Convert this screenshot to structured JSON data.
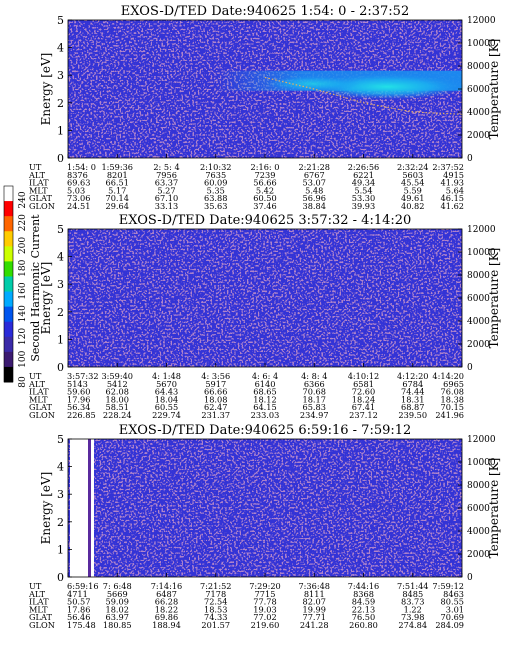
{
  "figure": {
    "colorbar": {
      "label": "Second Harmonic Current",
      "ticks": [
        "240",
        "220",
        "200",
        "180",
        "160",
        "140",
        "120",
        "100",
        "80"
      ],
      "colors": [
        "#ffffff",
        "#ff0000",
        "#ff6600",
        "#ffcc00",
        "#ccff00",
        "#33dd00",
        "#00ccaa",
        "#00aaff",
        "#0055ee",
        "#2a2ad8",
        "#3a2aa8",
        "#3b1a70",
        "#000000"
      ]
    },
    "background_color": "#3333d6",
    "texture_color": "#6e3a96"
  },
  "chart_data": [
    {
      "type": "heatmap",
      "title": "EXOS-D/TED   Date:940625   1:54: 0 - 2:37:52",
      "ylabel": "Energy [eV]",
      "y2label": "Temperature [K]",
      "ylim": [
        0,
        5
      ],
      "y2lim": [
        0,
        12000
      ],
      "yticks": [
        "0",
        "1",
        "2",
        "3",
        "4",
        "5"
      ],
      "y2ticks": [
        "0",
        "2000",
        "4000",
        "6000",
        "8000",
        "10000",
        "12000"
      ],
      "row_labels": [
        "UT",
        "ALT",
        "ILAT",
        "MLT",
        "GLAT",
        "GLON"
      ],
      "columns": [
        [
          "1:54: 0",
          "8376",
          "69.63",
          "5.03",
          "73.06",
          "24.51"
        ],
        [
          "1:59:36",
          "8201",
          "66.51",
          "5.17",
          "70.14",
          "29.64"
        ],
        [
          "2: 5: 4",
          "7956",
          "63.37",
          "5.27",
          "67.10",
          "33.13"
        ],
        [
          "2:10:32",
          "7635",
          "60.09",
          "5.35",
          "63.88",
          "35.63"
        ],
        [
          "2:16: 0",
          "7239",
          "56.66",
          "5.42",
          "60.50",
          "37.46"
        ],
        [
          "2:21:28",
          "6767",
          "53.07",
          "5.48",
          "56.96",
          "38.84"
        ],
        [
          "2:26:56",
          "6221",
          "49.34",
          "5.54",
          "53.30",
          "39.93"
        ],
        [
          "2:32:24",
          "5603",
          "45.54",
          "5.59",
          "49.61",
          "40.82"
        ],
        [
          "2:37:52",
          "4915",
          "41.93",
          "5.64",
          "46.15",
          "41.62"
        ]
      ],
      "features": {
        "band_energy_ev": 2.8,
        "band_starts_at_ut": "2:10:32",
        "band_peak_energy_ev": 2.5,
        "temperature_trace": {
          "x_ut": [
            "2:16: 0",
            "2:21:28",
            "2:26:56",
            "2:32:24",
            "2:37:52"
          ],
          "y_k": [
            7000,
            6000,
            4800,
            4000,
            3800
          ]
        }
      }
    },
    {
      "type": "heatmap",
      "title": "EXOS-D/TED   Date:940625   3:57:32 - 4:14:20",
      "ylabel": "Energy [eV]",
      "y2label": "Temperature [K]",
      "ylim": [
        0,
        5
      ],
      "y2lim": [
        0,
        12000
      ],
      "yticks": [
        "0",
        "1",
        "2",
        "3",
        "4",
        "5"
      ],
      "y2ticks": [
        "0",
        "2000",
        "4000",
        "6000",
        "8000",
        "10000",
        "12000"
      ],
      "row_labels": [
        "UT",
        "ALT",
        "ILAT",
        "MLT",
        "GLAT",
        "GLON"
      ],
      "columns": [
        [
          "3:57:32",
          "5143",
          "59.60",
          "17.96",
          "56.34",
          "226.85"
        ],
        [
          "3:59:40",
          "5412",
          "62.08",
          "18.00",
          "58.51",
          "228.24"
        ],
        [
          "4: 1:48",
          "5670",
          "64.43",
          "18.04",
          "60.55",
          "229.74"
        ],
        [
          "4: 3:56",
          "5917",
          "66.66",
          "18.08",
          "62.47",
          "231.37"
        ],
        [
          "4: 6: 4",
          "6140",
          "68.65",
          "18.12",
          "64.15",
          "233.03"
        ],
        [
          "4: 8: 4",
          "6366",
          "70.68",
          "18.17",
          "65.83",
          "234.97"
        ],
        [
          "4:10:12",
          "6581",
          "72.60",
          "18.24",
          "67.41",
          "237.12"
        ],
        [
          "4:12:20",
          "6784",
          "74.44",
          "18.31",
          "68.87",
          "239.50"
        ],
        [
          "4:14:20",
          "6965",
          "76.08",
          "18.38",
          "70.15",
          "241.96"
        ]
      ]
    },
    {
      "type": "heatmap",
      "title": "EXOS-D/TED   Date:940625   6:59:16 - 7:59:12",
      "ylabel": "Energy [eV]",
      "y2label": "Temperature [K]",
      "ylim": [
        0,
        5
      ],
      "y2lim": [
        0,
        12000
      ],
      "yticks": [
        "0",
        "1",
        "2",
        "3",
        "4",
        "5"
      ],
      "y2ticks": [
        "0",
        "2000",
        "4000",
        "6000",
        "8000",
        "10000",
        "12000"
      ],
      "row_labels": [
        "UT",
        "ALT",
        "ILAT",
        "MLT",
        "GLAT",
        "GLON"
      ],
      "columns": [
        [
          "6:59:16",
          "4711",
          "50.57",
          "17.86",
          "56.46",
          "175.48"
        ],
        [
          "7: 6:48",
          "5669",
          "59.09",
          "18.02",
          "63.97",
          "180.85"
        ],
        [
          "7:14:16",
          "6487",
          "66.28",
          "18.22",
          "69.86",
          "188.94"
        ],
        [
          "7:21:52",
          "7178",
          "72.54",
          "18.53",
          "74.33",
          "201.57"
        ],
        [
          "7:29:20",
          "7715",
          "77.78",
          "19.03",
          "77.02",
          "219.60"
        ],
        [
          "7:36:48",
          "8111",
          "82.07",
          "19.99",
          "77.71",
          "241.28"
        ],
        [
          "7:44:16",
          "8368",
          "84.59",
          "22.13",
          "76.50",
          "260.80"
        ],
        [
          "7:51:44",
          "8485",
          "83.73",
          "1.22",
          "73.98",
          "274.84"
        ],
        [
          "7:59:12",
          "8463",
          "80.55",
          "3.01",
          "70.69",
          "284.09"
        ]
      ],
      "features": {
        "data_gaps_ut": [
          "6:59:16",
          "7: 0:40"
        ]
      }
    }
  ]
}
